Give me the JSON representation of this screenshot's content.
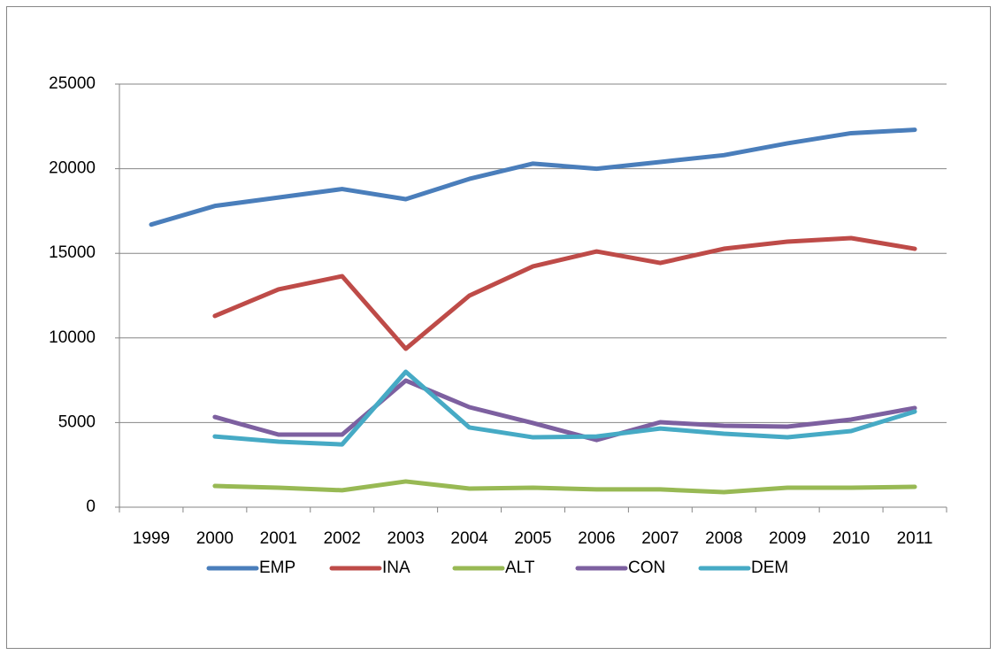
{
  "chart_data": {
    "type": "line",
    "categories": [
      "1999",
      "2000",
      "2001",
      "2002",
      "2003",
      "2004",
      "2005",
      "2006",
      "2007",
      "2008",
      "2009",
      "2010",
      "2011"
    ],
    "series": [
      {
        "name": "EMP",
        "color": "#4a7ebb",
        "values": [
          16700,
          17800,
          18300,
          18800,
          18200,
          19400,
          20300,
          20000,
          20400,
          20800,
          21500,
          22100,
          22300
        ]
      },
      {
        "name": "INA",
        "color": "#be4b48",
        "values": [
          null,
          11300,
          12870,
          13650,
          9360,
          12500,
          14230,
          15110,
          14430,
          15270,
          15690,
          15900,
          15270
        ]
      },
      {
        "name": "ALT",
        "color": "#98b954",
        "values": [
          null,
          1255,
          1150,
          1000,
          1520,
          1100,
          1150,
          1050,
          1050,
          890,
          1150,
          1150,
          1200
        ]
      },
      {
        "name": "CON",
        "color": "#7d60a0",
        "values": [
          null,
          5330,
          4290,
          4290,
          7480,
          5910,
          4970,
          3970,
          5020,
          4810,
          4760,
          5180,
          5860
        ]
      },
      {
        "name": "DEM",
        "color": "#46aac5",
        "values": [
          null,
          4180,
          3870,
          3710,
          8000,
          4710,
          4130,
          4180,
          4650,
          4340,
          4130,
          4500,
          5650
        ]
      }
    ],
    "ylim": [
      0,
      25000
    ],
    "yticks": [
      0,
      5000,
      10000,
      15000,
      20000,
      25000
    ],
    "grid": true,
    "legend": "bottom"
  }
}
